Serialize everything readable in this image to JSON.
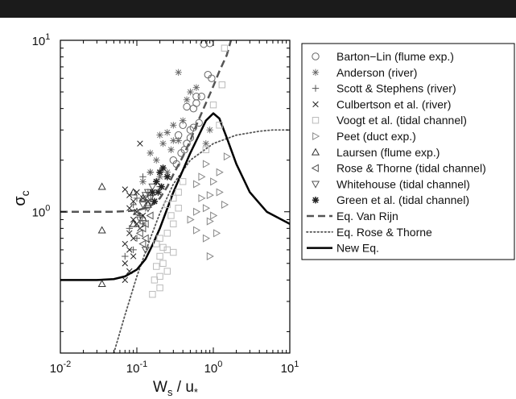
{
  "chart_data": {
    "type": "scatter",
    "title": "",
    "xlabel": {
      "base": "W",
      "sub": "s",
      "mid": " / u",
      "sub2": "*"
    },
    "ylabel": {
      "base": "σ",
      "sub": "c"
    },
    "x_scale": "log",
    "y_scale": "log",
    "xlim": [
      0.01,
      10
    ],
    "ylim": [
      0.15,
      10
    ],
    "grid": false,
    "legend_position": "right",
    "x_ticks": [
      {
        "value": 0.01,
        "base": "10",
        "exp": "-2"
      },
      {
        "value": 0.1,
        "base": "10",
        "exp": "-1"
      },
      {
        "value": 1,
        "base": "10",
        "exp": "0"
      },
      {
        "value": 10,
        "base": "10",
        "exp": "1"
      }
    ],
    "y_ticks": [
      {
        "value": 1,
        "base": "10",
        "exp": "0"
      },
      {
        "value": 10,
        "base": "10",
        "exp": "1"
      }
    ],
    "series": [
      {
        "name": "Barton−Lin (flume exp.)",
        "marker": "circle",
        "color": "#666666",
        "points": [
          [
            0.75,
            9.5
          ],
          [
            0.9,
            9.6
          ],
          [
            0.85,
            6.3
          ],
          [
            0.95,
            6.0
          ],
          [
            0.6,
            4.7
          ],
          [
            0.7,
            4.7
          ],
          [
            0.6,
            4.3
          ],
          [
            0.45,
            4.1
          ],
          [
            0.55,
            4.0
          ],
          [
            0.65,
            3.3
          ],
          [
            0.5,
            3.0
          ],
          [
            0.55,
            3.1
          ],
          [
            0.4,
            3.2
          ],
          [
            0.35,
            2.8
          ],
          [
            0.5,
            2.7
          ],
          [
            0.45,
            2.5
          ],
          [
            0.38,
            2.2
          ],
          [
            0.42,
            2.3
          ],
          [
            0.3,
            2.0
          ],
          [
            0.33,
            1.9
          ]
        ]
      },
      {
        "name": "Anderson (river)",
        "marker": "asterisk",
        "color": "#666666",
        "points": [
          [
            0.35,
            6.5
          ],
          [
            0.5,
            5.0
          ],
          [
            0.6,
            5.3
          ],
          [
            0.45,
            4.5
          ],
          [
            0.3,
            3.2
          ],
          [
            0.25,
            2.9
          ],
          [
            0.4,
            3.4
          ],
          [
            0.2,
            2.8
          ],
          [
            0.3,
            2.6
          ],
          [
            0.22,
            2.5
          ],
          [
            0.35,
            2.6
          ],
          [
            0.28,
            2.3
          ],
          [
            0.15,
            2.2
          ],
          [
            0.18,
            2.0
          ],
          [
            0.8,
            2.5
          ],
          [
            0.9,
            3.0
          ],
          [
            0.25,
            1.7
          ],
          [
            0.2,
            1.6
          ],
          [
            0.15,
            1.7
          ],
          [
            0.12,
            1.5
          ]
        ]
      },
      {
        "name": "Scott & Stephens (river)",
        "marker": "plus",
        "color": "#555555",
        "points": [
          [
            0.15,
            1.7
          ],
          [
            0.12,
            1.6
          ],
          [
            0.18,
            1.5
          ],
          [
            0.2,
            1.4
          ],
          [
            0.14,
            1.3
          ],
          [
            0.1,
            1.2
          ],
          [
            0.16,
            1.25
          ],
          [
            0.13,
            1.05
          ],
          [
            0.09,
            1.1
          ],
          [
            0.11,
            0.95
          ],
          [
            0.12,
            0.85
          ],
          [
            0.08,
            0.8
          ],
          [
            0.1,
            0.7
          ],
          [
            0.09,
            0.6
          ],
          [
            0.07,
            0.55
          ]
        ]
      },
      {
        "name": "Culbertson et al. (river)",
        "marker": "cross",
        "color": "#222222",
        "points": [
          [
            0.11,
            2.5
          ],
          [
            0.07,
            1.35
          ],
          [
            0.08,
            1.25
          ],
          [
            0.1,
            1.3
          ],
          [
            0.09,
            1.15
          ],
          [
            0.12,
            1.2
          ],
          [
            0.14,
            1.15
          ],
          [
            0.08,
            1.05
          ],
          [
            0.1,
            1.0
          ],
          [
            0.12,
            0.95
          ],
          [
            0.09,
            0.9
          ],
          [
            0.1,
            0.85
          ],
          [
            0.11,
            0.8
          ],
          [
            0.08,
            0.75
          ],
          [
            0.09,
            0.7
          ],
          [
            0.07,
            0.65
          ],
          [
            0.08,
            0.6
          ],
          [
            0.09,
            0.55
          ],
          [
            0.07,
            0.5
          ],
          [
            0.08,
            0.45
          ],
          [
            0.07,
            0.4
          ]
        ]
      },
      {
        "name": "Voogt et al. (tidal channel)",
        "marker": "square",
        "color": "#bbbbbb",
        "points": [
          [
            1.4,
            9.0
          ],
          [
            1.3,
            5.5
          ],
          [
            1.0,
            4.2
          ],
          [
            1.2,
            3.2
          ],
          [
            0.8,
            2.3
          ],
          [
            0.4,
            1.5
          ],
          [
            0.35,
            1.3
          ],
          [
            0.3,
            1.2
          ],
          [
            0.25,
            1.1
          ],
          [
            0.35,
            1.05
          ],
          [
            0.28,
            0.95
          ],
          [
            0.3,
            0.85
          ],
          [
            0.25,
            0.75
          ],
          [
            0.2,
            0.7
          ],
          [
            0.18,
            0.65
          ],
          [
            0.22,
            0.62
          ],
          [
            0.25,
            0.6
          ],
          [
            0.3,
            0.58
          ],
          [
            0.2,
            0.55
          ],
          [
            0.22,
            0.5
          ],
          [
            0.18,
            0.48
          ],
          [
            0.25,
            0.45
          ],
          [
            0.2,
            0.42
          ],
          [
            0.17,
            0.4
          ],
          [
            0.2,
            0.36
          ],
          [
            0.16,
            0.33
          ]
        ]
      },
      {
        "name": "Peet (duct exp.)",
        "marker": "triangle-right",
        "color": "#888888",
        "points": [
          [
            1.5,
            2.1
          ],
          [
            0.8,
            1.9
          ],
          [
            1.2,
            1.7
          ],
          [
            0.7,
            1.6
          ],
          [
            1.0,
            1.5
          ],
          [
            0.6,
            1.45
          ],
          [
            1.2,
            1.3
          ],
          [
            0.9,
            1.25
          ],
          [
            0.7,
            1.2
          ],
          [
            1.4,
            1.1
          ],
          [
            0.8,
            1.05
          ],
          [
            0.6,
            1.0
          ],
          [
            1.0,
            0.95
          ],
          [
            0.5,
            0.9
          ],
          [
            0.9,
            0.88
          ],
          [
            0.6,
            0.78
          ],
          [
            1.1,
            0.75
          ],
          [
            0.8,
            0.7
          ],
          [
            0.9,
            0.55
          ]
        ]
      },
      {
        "name": "Laursen (flume exp.)",
        "marker": "triangle-up",
        "color": "#333333",
        "points": [
          [
            0.035,
            1.4
          ],
          [
            0.035,
            0.78
          ],
          [
            0.035,
            0.38
          ],
          [
            0.09,
            1.3
          ],
          [
            0.12,
            1.2
          ],
          [
            0.14,
            1.1
          ],
          [
            0.1,
            1.0
          ],
          [
            0.12,
            0.92
          ],
          [
            0.09,
            0.85
          ]
        ]
      },
      {
        "name": "Rose & Thorne (tidal channel)",
        "marker": "triangle-left",
        "color": "#555555",
        "points": [
          [
            0.14,
            1.2
          ],
          [
            0.15,
            0.95
          ],
          [
            0.13,
            0.85
          ],
          [
            0.12,
            0.8
          ],
          [
            0.11,
            0.75
          ],
          [
            0.13,
            0.7
          ],
          [
            0.12,
            0.65
          ]
        ]
      },
      {
        "name": "Whitehouse (tidal channel)",
        "marker": "triangle-down",
        "color": "#555555",
        "points": [
          [
            0.16,
            1.4
          ],
          [
            0.14,
            1.3
          ],
          [
            0.13,
            1.25
          ],
          [
            0.15,
            1.2
          ],
          [
            0.12,
            1.1
          ],
          [
            0.14,
            1.05
          ],
          [
            0.11,
            0.9
          ],
          [
            0.13,
            0.6
          ]
        ]
      },
      {
        "name": "Green et al. (tidal channel)",
        "marker": "asterisk-bold",
        "color": "#222222",
        "points": [
          [
            0.22,
            1.8
          ],
          [
            0.2,
            1.7
          ],
          [
            0.25,
            1.6
          ],
          [
            0.18,
            1.5
          ],
          [
            0.21,
            1.4
          ],
          [
            0.19,
            1.3
          ],
          [
            0.16,
            1.3
          ],
          [
            0.17,
            1.15
          ]
        ]
      }
    ],
    "lines": [
      {
        "name": "Eq. Van Rijn",
        "style": "dashed",
        "color": "#555555",
        "width": 2.5,
        "points": [
          [
            0.01,
            1.0
          ],
          [
            0.05,
            1.0
          ],
          [
            0.08,
            1.01
          ],
          [
            0.1,
            1.02
          ],
          [
            0.13,
            1.05
          ],
          [
            0.16,
            1.1
          ],
          [
            0.2,
            1.2
          ],
          [
            0.25,
            1.4
          ],
          [
            0.3,
            1.65
          ],
          [
            0.4,
            2.1
          ],
          [
            0.5,
            2.6
          ],
          [
            0.6,
            3.2
          ],
          [
            0.8,
            4.3
          ],
          [
            1.0,
            5.4
          ],
          [
            1.2,
            6.6
          ],
          [
            1.5,
            8.2
          ],
          [
            1.7,
            10.0
          ]
        ]
      },
      {
        "name": "Eq. Rose & Thorne",
        "style": "dotted",
        "color": "#555555",
        "width": 1.8,
        "points": [
          [
            0.05,
            0.15
          ],
          [
            0.07,
            0.25
          ],
          [
            0.1,
            0.42
          ],
          [
            0.15,
            0.7
          ],
          [
            0.2,
            0.98
          ],
          [
            0.3,
            1.45
          ],
          [
            0.5,
            2.0
          ],
          [
            1.0,
            2.5
          ],
          [
            2.0,
            2.8
          ],
          [
            4.0,
            2.95
          ],
          [
            6.0,
            3.0
          ],
          [
            10.0,
            3.0
          ]
        ]
      },
      {
        "name": "New Eq.",
        "style": "solid",
        "color": "#000000",
        "width": 2.5,
        "points": [
          [
            0.01,
            0.4
          ],
          [
            0.03,
            0.4
          ],
          [
            0.05,
            0.405
          ],
          [
            0.07,
            0.42
          ],
          [
            0.1,
            0.46
          ],
          [
            0.13,
            0.53
          ],
          [
            0.16,
            0.64
          ],
          [
            0.2,
            0.8
          ],
          [
            0.3,
            1.3
          ],
          [
            0.5,
            2.2
          ],
          [
            0.8,
            3.4
          ],
          [
            1.0,
            3.75
          ],
          [
            1.2,
            3.5
          ],
          [
            1.5,
            2.7
          ],
          [
            2.0,
            1.9
          ],
          [
            3.0,
            1.3
          ],
          [
            5.0,
            1.0
          ],
          [
            10.0,
            0.85
          ]
        ]
      }
    ]
  }
}
